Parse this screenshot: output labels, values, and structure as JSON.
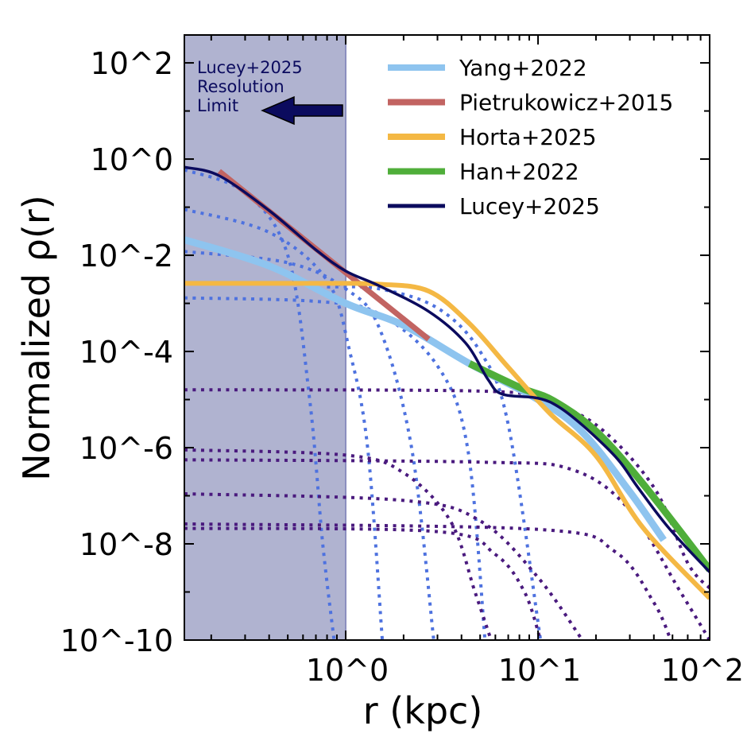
{
  "chart_data": {
    "type": "line",
    "xlabel": "r (kpc)",
    "ylabel": "Normalized ρ(r)",
    "xscale": "log",
    "yscale": "log",
    "xlim": [
      0.145,
      78
    ],
    "ylim": [
      1e-10,
      380
    ],
    "x_ticks": [
      1,
      10,
      100
    ],
    "x_tick_labels": [
      "10^0",
      "10^1",
      "10^2"
    ],
    "y_ticks": [
      100.0,
      1,
      0.01,
      0.0001,
      1e-06,
      1e-08,
      1e-10
    ],
    "y_tick_labels": [
      "10^2",
      "10^0",
      "10^-2",
      "10^-4",
      "10^-6",
      "10^-8",
      "10^-10"
    ],
    "grid": false,
    "legend_position": "top-right",
    "shaded_region": {
      "x_max": 1.0,
      "color": "#b0b3d0"
    },
    "annotation": {
      "lines": [
        "Lucey+2025",
        "Resolution",
        "Limit"
      ],
      "color": "#0b0b5e",
      "arrow": "left"
    },
    "series": [
      {
        "name": "Yang+2022",
        "color": "#8ec4ef",
        "style": "solid",
        "points": [
          [
            0.145,
            0.021
          ],
          [
            0.4,
            0.006
          ],
          [
            1,
            0.001
          ],
          [
            2,
            0.00035
          ],
          [
            4.4,
            5.6e-05
          ],
          [
            10,
            1e-05
          ],
          [
            17,
            2.1e-06
          ],
          [
            30,
            1.2e-07
          ],
          [
            45,
            1.2e-08
          ]
        ]
      },
      {
        "name": "Pietrukowicz+2015",
        "color": "#c26462",
        "style": "solid",
        "points": [
          [
            0.22,
            0.56
          ],
          [
            2.7,
            0.00018
          ]
        ]
      },
      {
        "name": "Horta+2025",
        "color": "#f4b844",
        "style": "solid",
        "points": [
          [
            0.145,
            0.0026
          ],
          [
            0.8,
            0.0026
          ],
          [
            1.5,
            0.0025
          ],
          [
            2.7,
            0.0018
          ],
          [
            4.4,
            0.00038
          ],
          [
            7,
            4.7e-05
          ],
          [
            11.5,
            5.2e-06
          ],
          [
            20,
            6.8e-07
          ],
          [
            35,
            2.2e-08
          ],
          [
            78,
            7.4e-10
          ]
        ]
      },
      {
        "name": "Han+2022",
        "color": "#4fae3a",
        "style": "solid",
        "points": [
          [
            4.4,
            5.6e-05
          ],
          [
            8,
            1.8e-05
          ],
          [
            12,
            9.5e-06
          ],
          [
            20,
            2.2e-06
          ],
          [
            35,
            1.8e-07
          ],
          [
            78,
            2.9e-09
          ]
        ]
      },
      {
        "name": "Lucey+2025",
        "color": "#0b0b5e",
        "style": "solid",
        "points": [
          [
            0.145,
            0.68
          ],
          [
            0.22,
            0.45
          ],
          [
            0.4,
            0.085
          ],
          [
            0.7,
            0.013
          ],
          [
            1,
            0.0047
          ],
          [
            1.5,
            0.0023
          ],
          [
            2.7,
            0.00068
          ],
          [
            4.2,
            0.00015
          ],
          [
            5.5,
            2.6e-05
          ],
          [
            6.5,
            1.3e-05
          ],
          [
            10,
            1.07e-05
          ],
          [
            13,
            6.8e-06
          ],
          [
            18,
            2.4e-06
          ],
          [
            26,
            5.7e-07
          ],
          [
            33,
            1.5e-07
          ],
          [
            48,
            2.1e-08
          ],
          [
            78,
            2.6e-09
          ]
        ]
      }
    ],
    "components": [
      {
        "group": "inner",
        "color": "#4e72df",
        "style": "dotted",
        "points": [
          [
            0.145,
            0.6
          ],
          [
            0.3,
            0.2
          ],
          [
            0.5,
            0.01
          ],
          [
            0.65,
            1e-05
          ],
          [
            0.76,
            1e-08
          ],
          [
            0.87,
            1e-10
          ]
        ]
      },
      {
        "group": "inner",
        "color": "#4e72df",
        "style": "dotted",
        "points": [
          [
            0.145,
            0.09
          ],
          [
            0.4,
            0.03
          ],
          [
            0.8,
            0.003
          ],
          [
            1.05,
            0.0001
          ],
          [
            1.3,
            1e-06
          ],
          [
            1.55,
            1e-10
          ]
        ]
      },
      {
        "group": "inner",
        "color": "#4e72df",
        "style": "dotted",
        "points": [
          [
            0.145,
            0.012
          ],
          [
            0.5,
            0.007
          ],
          [
            1,
            0.002
          ],
          [
            1.5,
            0.0003
          ],
          [
            2.2,
            1e-06
          ],
          [
            2.87,
            1e-10
          ]
        ]
      },
      {
        "group": "inner",
        "color": "#4e72df",
        "style": "dotted",
        "points": [
          [
            0.145,
            0.0013
          ],
          [
            0.7,
            0.0011
          ],
          [
            1.5,
            0.0006
          ],
          [
            3,
            5e-05
          ],
          [
            4.3,
            1e-06
          ],
          [
            5.3,
            1e-10
          ]
        ]
      },
      {
        "group": "inner",
        "color": "#4e72df",
        "style": "dotted",
        "points": [
          [
            0.8,
            0.0022
          ],
          [
            1.5,
            0.002
          ],
          [
            3,
            0.0008
          ],
          [
            5,
            0.0001
          ],
          [
            7,
            3e-06
          ],
          [
            10.3,
            1e-10
          ]
        ]
      },
      {
        "group": "outer",
        "color": "#4a1a7e",
        "style": "dotted",
        "points": [
          [
            0.145,
            1.6e-05
          ],
          [
            5,
            1.5e-05
          ],
          [
            10,
            1e-05
          ],
          [
            20,
            3e-06
          ],
          [
            40,
            1.5e-07
          ],
          [
            60,
            4e-09
          ],
          [
            78,
            1.2e-09
          ]
        ]
      },
      {
        "group": "outer",
        "color": "#4a1a7e",
        "style": "dotted",
        "points": [
          [
            0.145,
            9e-07
          ],
          [
            1,
            7e-07
          ],
          [
            2,
            3e-07
          ],
          [
            3.5,
            3e-08
          ],
          [
            4.7,
            1e-09
          ],
          [
            5.7,
            1e-10
          ]
        ]
      },
      {
        "group": "outer",
        "color": "#4a1a7e",
        "style": "dotted",
        "points": [
          [
            0.145,
            5.6e-07
          ],
          [
            5,
            5e-07
          ],
          [
            15,
            3.5e-07
          ],
          [
            30,
            5e-08
          ],
          [
            55,
            1e-09
          ],
          [
            78,
            1e-10
          ]
        ]
      },
      {
        "group": "outer",
        "color": "#4a1a7e",
        "style": "dotted",
        "points": [
          [
            0.145,
            1.1e-07
          ],
          [
            2,
            8e-08
          ],
          [
            5,
            3e-08
          ],
          [
            10,
            2e-09
          ],
          [
            17,
            1e-10
          ]
        ]
      },
      {
        "group": "outer",
        "color": "#4a1a7e",
        "style": "dotted",
        "points": [
          [
            0.145,
            2.6e-08
          ],
          [
            10,
            2e-08
          ],
          [
            25,
            7e-09
          ],
          [
            40,
            6e-10
          ],
          [
            49,
            1e-10
          ]
        ]
      },
      {
        "group": "outer",
        "color": "#4a1a7e",
        "style": "dotted",
        "points": [
          [
            0.145,
            2.1e-08
          ],
          [
            3,
            1.8e-08
          ],
          [
            6,
            6e-09
          ],
          [
            8.5,
            1e-09
          ],
          [
            10.3,
            1e-10
          ]
        ]
      }
    ]
  }
}
